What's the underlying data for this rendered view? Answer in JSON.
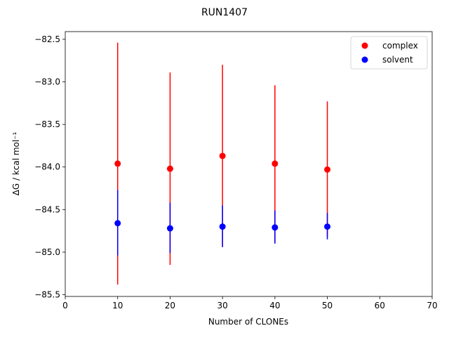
{
  "chart_data": {
    "type": "scatter",
    "title": "RUN1407",
    "xlabel": "Number of CLONEs",
    "ylabel": "ΔG / kcal mol⁻¹",
    "xlim": [
      0,
      70
    ],
    "ylim": [
      -85.52,
      -82.41
    ],
    "xticks": [
      0,
      10,
      20,
      30,
      40,
      50,
      60,
      70
    ],
    "yticks": [
      -85.5,
      -85.0,
      -84.5,
      -84.0,
      -83.5,
      -83.0,
      -82.5
    ],
    "xtick_labels": [
      "0",
      "10",
      "20",
      "30",
      "40",
      "50",
      "60",
      "70"
    ],
    "ytick_labels": [
      "−85.5",
      "−85.0",
      "−84.5",
      "−84.0",
      "−83.5",
      "−83.0",
      "−82.5"
    ],
    "grid": false,
    "legend_position": "top-right",
    "series": [
      {
        "name": "complex",
        "color": "#ff0000",
        "x": [
          10,
          20,
          30,
          40,
          50
        ],
        "y": [
          -83.96,
          -84.02,
          -83.87,
          -83.96,
          -84.03
        ],
        "yerr_low": [
          -85.38,
          -85.15,
          -84.94,
          -84.88,
          -84.82
        ],
        "yerr_high": [
          -82.54,
          -82.89,
          -82.8,
          -83.04,
          -83.23
        ]
      },
      {
        "name": "solvent",
        "color": "#0000ff",
        "x": [
          10,
          20,
          30,
          40,
          50
        ],
        "y": [
          -84.66,
          -84.72,
          -84.7,
          -84.71,
          -84.7
        ],
        "yerr_low": [
          -85.04,
          -85.01,
          -84.94,
          -84.9,
          -84.85
        ],
        "yerr_high": [
          -84.27,
          -84.42,
          -84.45,
          -84.51,
          -84.54
        ]
      }
    ]
  }
}
